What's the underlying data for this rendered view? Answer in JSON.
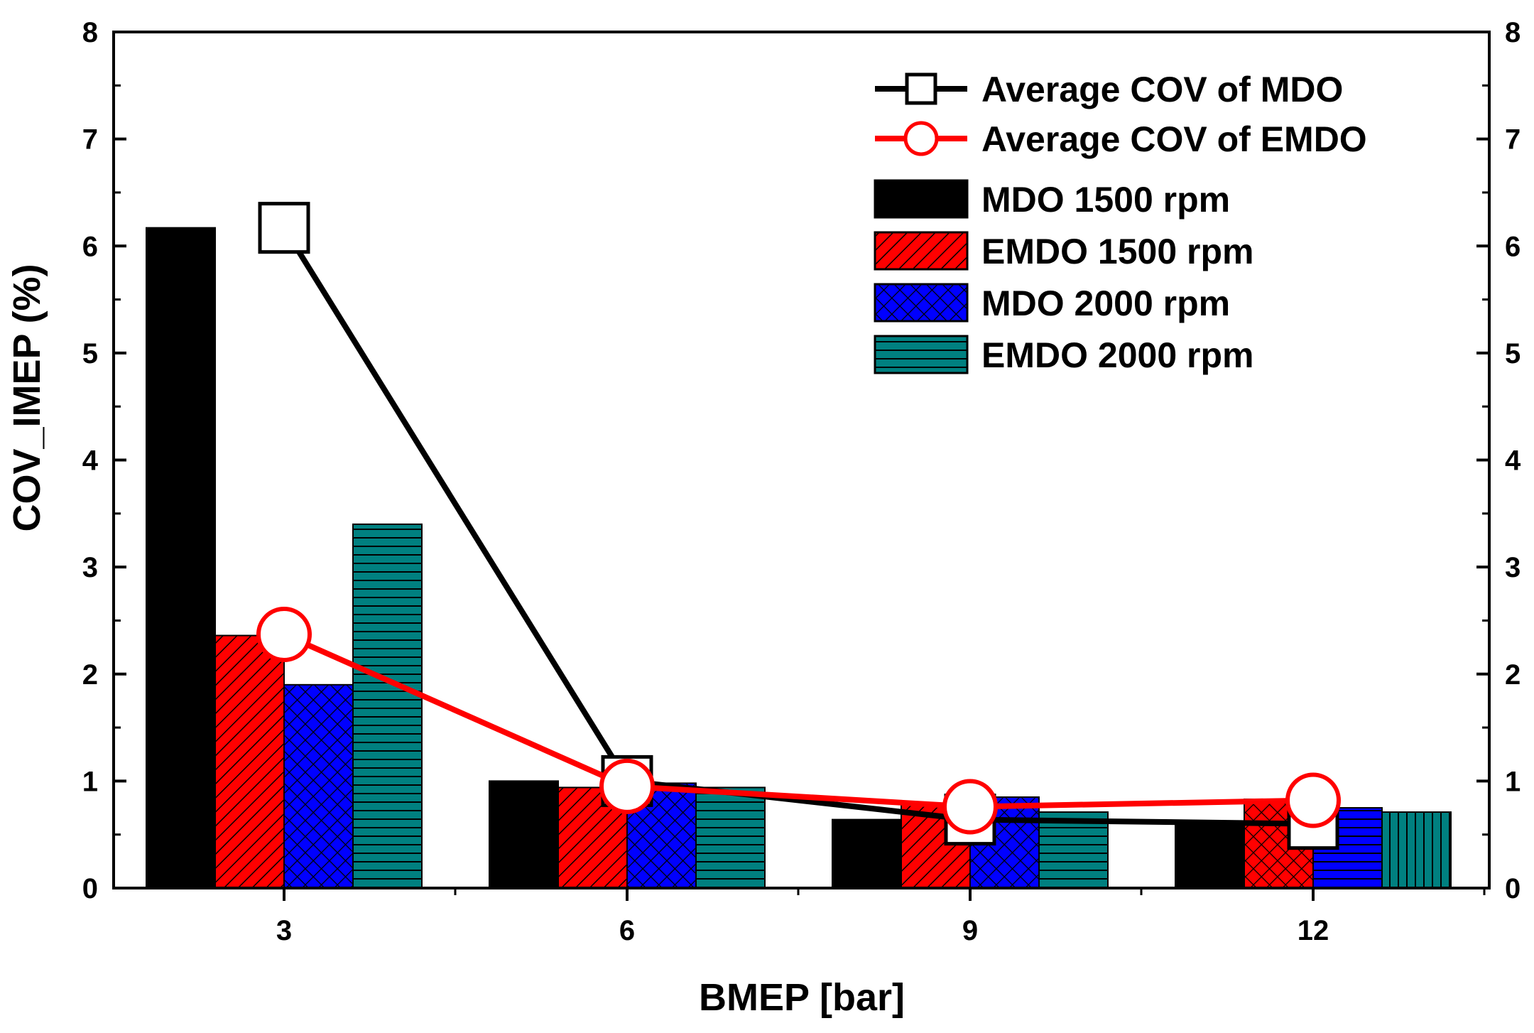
{
  "chart_data": {
    "type": "bar",
    "title": "",
    "xlabel": "BMEP [bar]",
    "ylabel": "COV_IMEP (%)",
    "categories": [
      "3",
      "6",
      "9",
      "12"
    ],
    "ylim": [
      0,
      8
    ],
    "yticks": [
      "0",
      "1",
      "2",
      "3",
      "4",
      "5",
      "6",
      "7",
      "8"
    ],
    "y2ticks": [
      "0",
      "1",
      "2",
      "3",
      "4",
      "5",
      "6",
      "7",
      "8"
    ],
    "series": [
      {
        "name": "MDO 1500 rpm",
        "values": [
          6.17,
          1.0,
          0.64,
          0.6
        ],
        "color": "#000000",
        "pattern": [
          "solid",
          "solid",
          "solid",
          "solid"
        ]
      },
      {
        "name": "EMDO 1500 rpm",
        "values": [
          2.36,
          0.94,
          0.78,
          0.83
        ],
        "color": "#ff0000",
        "pattern": [
          "diag",
          "diag",
          "diag",
          "cross"
        ]
      },
      {
        "name": "MDO 2000 rpm",
        "values": [
          1.9,
          0.98,
          0.85,
          0.75
        ],
        "color": "#0000ff",
        "pattern": [
          "cross",
          "cross",
          "cross",
          "hlines"
        ]
      },
      {
        "name": "EMDO 2000 rpm",
        "values": [
          3.4,
          0.94,
          0.71,
          0.71
        ],
        "color": "#008080",
        "pattern": [
          "hlines",
          "hlines",
          "hlines",
          "vlines"
        ]
      }
    ],
    "lines": [
      {
        "name": "Average COV of MDO",
        "values": [
          6.17,
          1.0,
          0.64,
          0.6
        ],
        "color": "#000000",
        "marker": "square"
      },
      {
        "name": "Average COV of EMDO",
        "values": [
          2.37,
          0.95,
          0.76,
          0.82
        ],
        "color": "#ff0000",
        "marker": "circle"
      }
    ],
    "legend_position": "top-right"
  }
}
